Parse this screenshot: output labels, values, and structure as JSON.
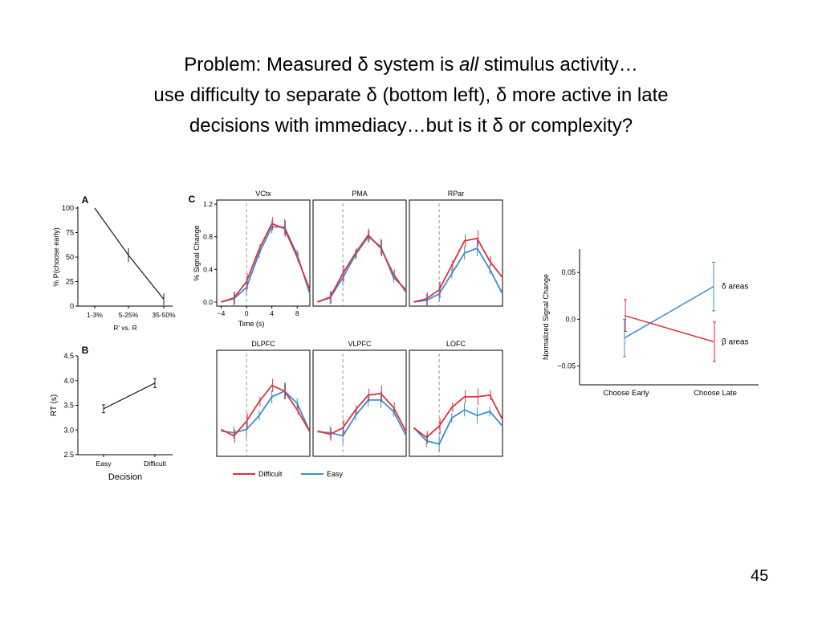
{
  "slide": {
    "title_line1_a": "Problem:  Measured δ system is ",
    "title_line1_em": "all",
    "title_line1_b": " stimulus activity…",
    "title_line2": "use difficulty to separate δ (bottom left), δ more active in late",
    "title_line3": "decisions with immediacy…but is it δ or complexity?",
    "page_number": "45"
  },
  "colors": {
    "difficult": "#e0303e",
    "easy": "#3a8fd0",
    "dark": "#222222"
  },
  "chart_data": [
    {
      "id": "A",
      "panel_label": "A",
      "type": "line",
      "categories": [
        "1-3%",
        "5-25%",
        "35-50%"
      ],
      "values": [
        100,
        52,
        7
      ],
      "errors": [
        0,
        7,
        6
      ],
      "yticks": [
        "0",
        "25",
        "50",
        "75",
        "100"
      ],
      "ylim": [
        0,
        100
      ],
      "ylabel": "% P(choose early)",
      "xlabel": "R' vs. R"
    },
    {
      "id": "B",
      "panel_label": "B",
      "type": "line",
      "categories": [
        "Easy",
        "Difficult"
      ],
      "values": [
        3.43,
        3.95
      ],
      "errors": [
        0.08,
        0.09
      ],
      "yticks": [
        "2.5",
        "3.0",
        "3.5",
        "4.0",
        "4.5"
      ],
      "ylim": [
        2.5,
        4.5
      ],
      "ylabel": "RT (s)",
      "xlabel": "Decision"
    },
    {
      "id": "C",
      "panel_label": "C",
      "type": "line",
      "x": [
        -4,
        -2,
        0,
        2,
        4,
        6,
        8,
        10
      ],
      "xticks": [
        "−4",
        "0",
        "4",
        "8"
      ],
      "yticks": [
        "0.0",
        "0.4",
        "0.8",
        "1.2"
      ],
      "ylim": [
        -0.05,
        1.25
      ],
      "ylabel": "% Signal Change",
      "xlabel": "Time (s)",
      "legend": [
        "Difficult",
        "Easy"
      ],
      "legend_position": "bottom",
      "panels": [
        {
          "name": "VCtx",
          "difficult": [
            0.0,
            0.05,
            0.25,
            0.65,
            0.96,
            0.9,
            0.55,
            0.15
          ],
          "easy": [
            0.0,
            0.04,
            0.18,
            0.6,
            0.92,
            0.92,
            0.58,
            0.1
          ]
        },
        {
          "name": "PMA",
          "difficult": [
            0.0,
            0.06,
            0.35,
            0.6,
            0.82,
            0.66,
            0.34,
            0.12
          ],
          "easy": [
            0.0,
            0.05,
            0.3,
            0.58,
            0.8,
            0.68,
            0.3,
            0.15
          ]
        },
        {
          "name": "RPar",
          "difficult": [
            0.0,
            0.04,
            0.15,
            0.45,
            0.75,
            0.78,
            0.5,
            0.3
          ],
          "easy": [
            0.0,
            0.02,
            0.1,
            0.35,
            0.6,
            0.66,
            0.4,
            0.1
          ]
        },
        {
          "name": "DLPFC",
          "difficult": [
            0.28,
            0.2,
            0.38,
            0.62,
            0.82,
            0.75,
            0.52,
            0.25
          ],
          "easy": [
            0.26,
            0.24,
            0.28,
            0.45,
            0.68,
            0.75,
            0.6,
            0.25
          ]
        },
        {
          "name": "VLPFC",
          "difficult": [
            0.26,
            0.22,
            0.3,
            0.52,
            0.7,
            0.72,
            0.55,
            0.25
          ],
          "easy": [
            0.25,
            0.24,
            0.2,
            0.45,
            0.64,
            0.64,
            0.5,
            0.2
          ]
        },
        {
          "name": "LOFC",
          "difficult": [
            0.3,
            0.18,
            0.32,
            0.55,
            0.68,
            0.68,
            0.7,
            0.4
          ],
          "easy": [
            0.3,
            0.14,
            0.1,
            0.42,
            0.52,
            0.45,
            0.5,
            0.32
          ]
        }
      ]
    },
    {
      "id": "D",
      "type": "line",
      "categories": [
        "Choose Early",
        "Choose Late"
      ],
      "series": [
        {
          "name": "δ areas",
          "values": [
            -0.02,
            0.035
          ],
          "errors": [
            0.02,
            0.026
          ]
        },
        {
          "name": "β areas",
          "values": [
            0.004,
            -0.024
          ],
          "errors": [
            0.017,
            0.021
          ]
        }
      ],
      "yticks": [
        "−0.05",
        "0.0",
        "0.05"
      ],
      "ylim": [
        -0.07,
        0.075
      ],
      "ylabel": "Normalized Signal Change"
    }
  ]
}
